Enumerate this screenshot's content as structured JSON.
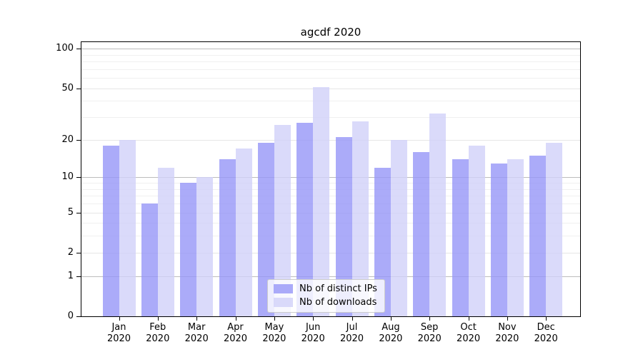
{
  "title": "agcdf 2020",
  "chart_data": {
    "type": "bar",
    "title": "agcdf 2020",
    "categories": [
      "Jan 2020",
      "Feb 2020",
      "Mar 2020",
      "Apr 2020",
      "May 2020",
      "Jun 2020",
      "Jul 2020",
      "Aug 2020",
      "Sep 2020",
      "Oct 2020",
      "Nov 2020",
      "Dec 2020"
    ],
    "series": [
      {
        "name": "Nb of distinct IPs",
        "color": "rgba(150,150,248,0.8)",
        "values": [
          18,
          6,
          9,
          14,
          19,
          27,
          21,
          12,
          16,
          14,
          13,
          15
        ]
      },
      {
        "name": "Nb of downloads",
        "color": "rgba(209,209,249,0.8)",
        "values": [
          20,
          12,
          10,
          17,
          26,
          51,
          28,
          20,
          32,
          18,
          14,
          19
        ]
      }
    ],
    "xlabel": "",
    "ylabel": "",
    "yscale": "log1p",
    "yticks": [
      0,
      1,
      2,
      5,
      10,
      20,
      50,
      100
    ],
    "yticks_minor": [
      3,
      4,
      6,
      7,
      8,
      9,
      30,
      40,
      60,
      70,
      80,
      90
    ],
    "ylim": [
      0,
      112
    ],
    "grid": true,
    "legend_position": "lower center"
  },
  "colors": {
    "grid_decade": "#bdbdbd",
    "grid_sub": "#e6e6e6",
    "grid_minor": "#f0f0f0",
    "spine": "#000000",
    "background": "#ffffff",
    "text": "#000000"
  }
}
